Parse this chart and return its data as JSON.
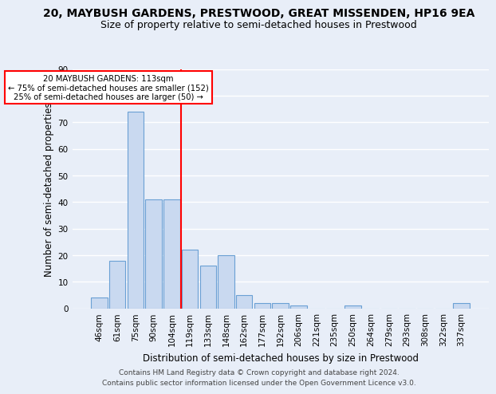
{
  "title1": "20, MAYBUSH GARDENS, PRESTWOOD, GREAT MISSENDEN, HP16 9EA",
  "title2": "Size of property relative to semi-detached houses in Prestwood",
  "xlabel": "Distribution of semi-detached houses by size in Prestwood",
  "ylabel": "Number of semi-detached properties",
  "footnote": "Contains HM Land Registry data © Crown copyright and database right 2024.\nContains public sector information licensed under the Open Government Licence v3.0.",
  "categories": [
    "46sqm",
    "61sqm",
    "75sqm",
    "90sqm",
    "104sqm",
    "119sqm",
    "133sqm",
    "148sqm",
    "162sqm",
    "177sqm",
    "192sqm",
    "206sqm",
    "221sqm",
    "235sqm",
    "250sqm",
    "264sqm",
    "279sqm",
    "293sqm",
    "308sqm",
    "322sqm",
    "337sqm"
  ],
  "values": [
    4,
    18,
    74,
    41,
    41,
    22,
    16,
    20,
    5,
    2,
    2,
    1,
    0,
    0,
    1,
    0,
    0,
    0,
    0,
    0,
    2
  ],
  "bar_color": "#c9d9f0",
  "bar_edgecolor": "#6aa0d4",
  "bar_linewidth": 0.8,
  "vline_x_index": 5,
  "vline_color": "red",
  "vline_linewidth": 1.5,
  "annotation_title": "20 MAYBUSH GARDENS: 113sqm",
  "annotation_line1": "← 75% of semi-detached houses are smaller (152)",
  "annotation_line2": "25% of semi-detached houses are larger (50) →",
  "annotation_box_color": "white",
  "annotation_box_edgecolor": "red",
  "ylim": [
    0,
    90
  ],
  "yticks": [
    0,
    10,
    20,
    30,
    40,
    50,
    60,
    70,
    80,
    90
  ],
  "bg_color": "#e8eef8",
  "grid_color": "white",
  "title1_fontsize": 10,
  "title2_fontsize": 9,
  "axis_label_fontsize": 8.5,
  "tick_fontsize": 7.5,
  "footnote_fontsize": 6.5
}
